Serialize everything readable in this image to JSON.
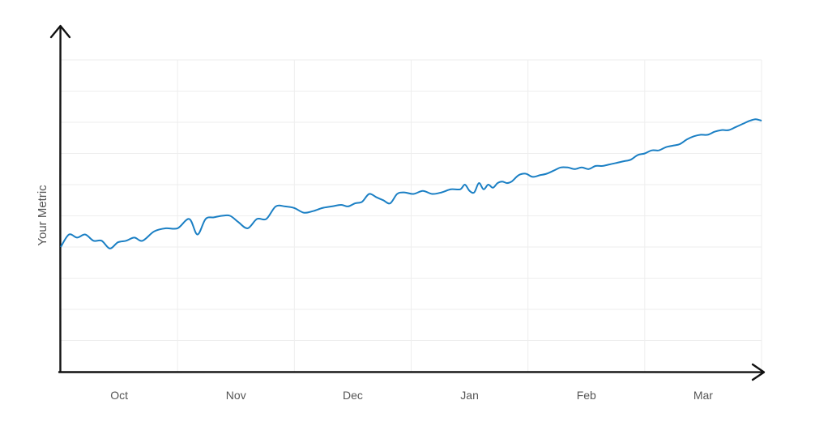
{
  "chart_data": {
    "type": "line",
    "ylabel": "Your Metric",
    "xlabel": "",
    "title": "",
    "grid": true,
    "line_color": "#1a7fc4",
    "x_tick_labels": [
      "Oct",
      "Nov",
      "Dec",
      "Jan",
      "Feb",
      "Mar"
    ],
    "x_tick_positions": [
      1.5,
      2.5,
      3.5,
      4.5,
      5.5,
      6.5
    ],
    "xlim": [
      1,
      7
    ],
    "ylim": [
      0,
      10
    ],
    "y_gridlines": [
      1,
      2,
      3,
      4,
      5,
      6,
      7,
      8,
      9,
      10
    ],
    "y_ticks_labeled": false,
    "series": [
      {
        "x": [
          1.0,
          1.07,
          1.14,
          1.21,
          1.28,
          1.35,
          1.42,
          1.49,
          1.56,
          1.63,
          1.7,
          1.8,
          1.9,
          2.0,
          2.1,
          2.17,
          2.24,
          2.31,
          2.38,
          2.45,
          2.52,
          2.6,
          2.68,
          2.76,
          2.84,
          2.92,
          3.0,
          3.08,
          3.16,
          3.24,
          3.32,
          3.4,
          3.46,
          3.52,
          3.58,
          3.64,
          3.7,
          3.76,
          3.82,
          3.88,
          3.94,
          4.02,
          4.1,
          4.18,
          4.26,
          4.34,
          4.42,
          4.46,
          4.5,
          4.54,
          4.58,
          4.62,
          4.66,
          4.7,
          4.74,
          4.78,
          4.82,
          4.86,
          4.92,
          4.98,
          5.04,
          5.1,
          5.16,
          5.22,
          5.28,
          5.34,
          5.4,
          5.46,
          5.52,
          5.58,
          5.64,
          5.7,
          5.76,
          5.82,
          5.88,
          5.94,
          6.0,
          6.06,
          6.12,
          6.18,
          6.24,
          6.3,
          6.36,
          6.42,
          6.48,
          6.54,
          6.6,
          6.66,
          6.72,
          6.78,
          6.84,
          6.9,
          6.95,
          7.0
        ],
        "y": [
          4.0,
          4.4,
          4.3,
          4.4,
          4.2,
          4.2,
          3.95,
          4.15,
          4.2,
          4.3,
          4.2,
          4.5,
          4.6,
          4.6,
          4.9,
          4.4,
          4.9,
          4.95,
          5.0,
          5.0,
          4.8,
          4.6,
          4.9,
          4.9,
          5.3,
          5.3,
          5.25,
          5.1,
          5.15,
          5.25,
          5.3,
          5.35,
          5.3,
          5.4,
          5.45,
          5.7,
          5.6,
          5.5,
          5.4,
          5.7,
          5.75,
          5.7,
          5.8,
          5.7,
          5.75,
          5.85,
          5.85,
          6.0,
          5.8,
          5.75,
          6.05,
          5.85,
          6.0,
          5.9,
          6.05,
          6.1,
          6.05,
          6.1,
          6.3,
          6.35,
          6.25,
          6.3,
          6.35,
          6.45,
          6.55,
          6.55,
          6.5,
          6.55,
          6.5,
          6.6,
          6.6,
          6.65,
          6.7,
          6.75,
          6.8,
          6.95,
          7.0,
          7.1,
          7.1,
          7.2,
          7.25,
          7.3,
          7.45,
          7.55,
          7.6,
          7.6,
          7.7,
          7.75,
          7.75,
          7.85,
          7.95,
          8.05,
          8.1,
          8.05
        ]
      }
    ]
  }
}
